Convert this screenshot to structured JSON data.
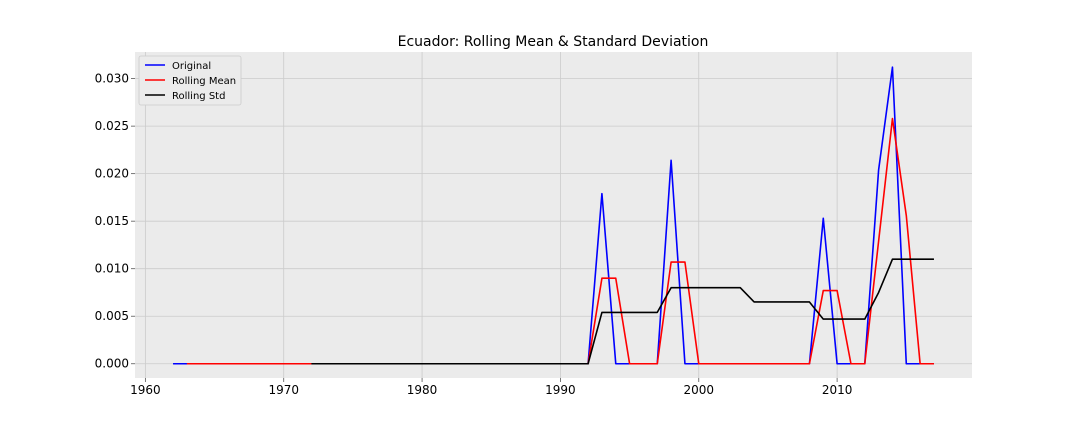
{
  "chart_data": {
    "type": "line",
    "title": "Ecuador: Rolling Mean & Standard Deviation",
    "xlabel": "",
    "ylabel": "",
    "xlim": [
      1959.25,
      2019.75
    ],
    "ylim": [
      -0.0015,
      0.0328
    ],
    "x_ticks": [
      1960,
      1970,
      1980,
      1990,
      2000,
      2010
    ],
    "y_ticks": [
      0.0,
      0.005,
      0.01,
      0.015,
      0.02,
      0.025,
      0.03
    ],
    "y_tick_labels": [
      "0.000",
      "0.005",
      "0.010",
      "0.015",
      "0.020",
      "0.025",
      "0.030"
    ],
    "grid": true,
    "legend_position": "upper-left",
    "series": [
      {
        "name": "Original",
        "color": "#0000ff",
        "points": [
          [
            1962,
            0
          ],
          [
            1963,
            0
          ],
          [
            1992,
            0
          ],
          [
            1993,
            0.0179
          ],
          [
            1994,
            0
          ],
          [
            1997,
            0
          ],
          [
            1998,
            0.0214
          ],
          [
            1999,
            0
          ],
          [
            2008,
            0
          ],
          [
            2009,
            0.0153
          ],
          [
            2010,
            0
          ],
          [
            2012,
            0
          ],
          [
            2013,
            0.0204
          ],
          [
            2014,
            0.0312
          ],
          [
            2015,
            0
          ],
          [
            2017,
            0
          ]
        ]
      },
      {
        "name": "Rolling Mean",
        "color": "#ff0000",
        "points": [
          [
            1963,
            0
          ],
          [
            1992,
            0
          ],
          [
            1993,
            0.009
          ],
          [
            1994,
            0.009
          ],
          [
            1995,
            0
          ],
          [
            1997,
            0
          ],
          [
            1998,
            0.0107
          ],
          [
            1999,
            0.0107
          ],
          [
            2000,
            0
          ],
          [
            2008,
            0
          ],
          [
            2009,
            0.0077
          ],
          [
            2010,
            0.0077
          ],
          [
            2011,
            0
          ],
          [
            2012,
            0
          ],
          [
            2014,
            0.0258
          ],
          [
            2015,
            0.0156
          ],
          [
            2016,
            0
          ],
          [
            2017,
            0
          ]
        ]
      },
      {
        "name": "Rolling Std",
        "color": "#000000",
        "points": [
          [
            1972,
            0
          ],
          [
            1992,
            0
          ],
          [
            1993,
            0.0054
          ],
          [
            1997,
            0.0054
          ],
          [
            1998,
            0.008
          ],
          [
            2003,
            0.008
          ],
          [
            2004,
            0.0065
          ],
          [
            2008,
            0.0065
          ],
          [
            2009,
            0.0047
          ],
          [
            2012,
            0.0047
          ],
          [
            2013,
            0.0075
          ],
          [
            2014,
            0.011
          ],
          [
            2017,
            0.011
          ]
        ]
      }
    ]
  }
}
